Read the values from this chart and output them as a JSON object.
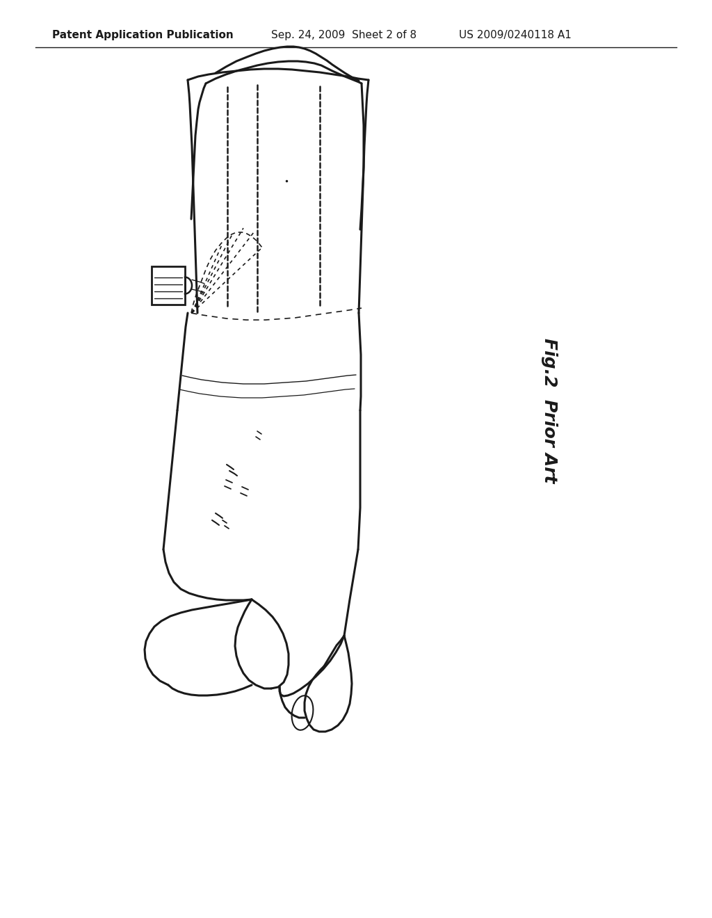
{
  "bg_color": "#ffffff",
  "line_color": "#1a1a1a",
  "header_left": "Patent Application Publication",
  "header_mid": "Sep. 24, 2009  Sheet 2 of 8",
  "header_right": "US 2009/0240118 A1",
  "fig_label": "Fig.2",
  "fig_sublabel": "Prior Art",
  "header_fontsize": 11,
  "fig_label_fontsize": 18,
  "fig_sublabel_fontsize": 18
}
